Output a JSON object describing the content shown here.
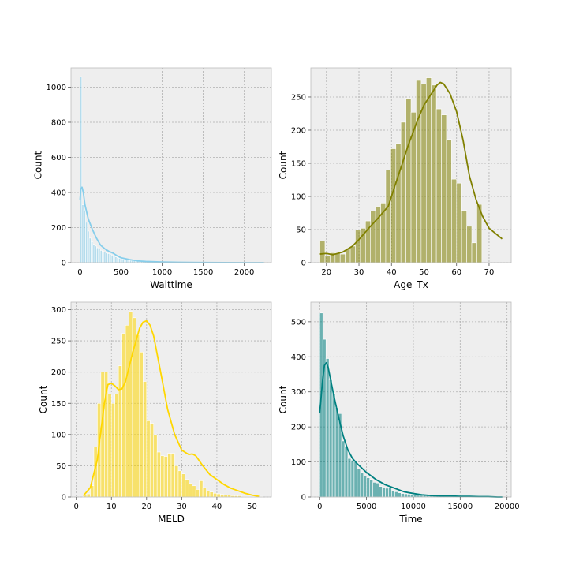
{
  "chart_data": [
    {
      "type": "histogram",
      "position": "top-left",
      "xlabel": "Waittime",
      "ylabel": "Count",
      "xlim": [
        -110,
        2330
      ],
      "ylim": [
        0,
        1110
      ],
      "xticks": [
        0,
        500,
        1000,
        1500,
        2000
      ],
      "yticks": [
        0,
        200,
        400,
        600,
        800,
        1000
      ],
      "grid": true,
      "color": "#87ceeb",
      "bin_start": 0,
      "bin_width": 22.4,
      "counts": [
        1060,
        330,
        300,
        230,
        180,
        140,
        120,
        105,
        95,
        85,
        78,
        70,
        64,
        60,
        55,
        52,
        48,
        43,
        38,
        33,
        28,
        25,
        22,
        20,
        18,
        16,
        14,
        13,
        12,
        11,
        10,
        9,
        8,
        7,
        7,
        6,
        6,
        5,
        5,
        4,
        4,
        4,
        3,
        3,
        3,
        3,
        2,
        2,
        2,
        2,
        2,
        2,
        1,
        1,
        1,
        1,
        1,
        1,
        1,
        1,
        1,
        1,
        1,
        1,
        1,
        1,
        1,
        1,
        1,
        1,
        1,
        1,
        1,
        1,
        1,
        1,
        1,
        1,
        1,
        1,
        0,
        0,
        0,
        0,
        0,
        0,
        0,
        0,
        0,
        0,
        0,
        0,
        0,
        0,
        0,
        0,
        0,
        0,
        0,
        1
      ],
      "kde": {
        "x": [
          0,
          10,
          25,
          40,
          60,
          100,
          150,
          200,
          250,
          300,
          350,
          400,
          450,
          500,
          600,
          700,
          800,
          1000,
          1200,
          1500,
          2000,
          2240
        ],
        "y": [
          360,
          420,
          430,
          400,
          330,
          250,
          190,
          140,
          100,
          80,
          65,
          55,
          40,
          28,
          18,
          10,
          7,
          4,
          2,
          1,
          0,
          0
        ]
      }
    },
    {
      "type": "histogram",
      "position": "top-right",
      "xlabel": "Age_Tx",
      "ylabel": "Count",
      "xlim": [
        15.2,
        76.8
      ],
      "ylim": [
        0,
        294
      ],
      "xticks": [
        20,
        30,
        40,
        50,
        60,
        70
      ],
      "yticks": [
        0,
        50,
        100,
        150,
        200,
        250
      ],
      "grid": true,
      "color": "#808000",
      "bin_start": 18,
      "bin_width": 1.556,
      "counts": [
        33,
        10,
        15,
        14,
        13,
        22,
        25,
        50,
        52,
        63,
        78,
        85,
        90,
        140,
        172,
        180,
        212,
        248,
        227,
        275,
        270,
        279,
        268,
        232,
        223,
        186,
        126,
        120,
        79,
        55,
        30,
        88
      ],
      "kde": {
        "x": [
          18,
          20,
          22,
          25,
          28,
          30,
          33,
          36,
          39,
          42,
          45,
          48,
          50,
          52,
          54,
          55,
          56,
          58,
          60,
          62,
          64,
          66,
          68,
          70,
          72,
          74
        ],
        "y": [
          13,
          14,
          12,
          16,
          25,
          35,
          52,
          68,
          85,
          130,
          175,
          215,
          238,
          253,
          268,
          272,
          270,
          255,
          228,
          185,
          130,
          95,
          70,
          52,
          44,
          36
        ]
      }
    },
    {
      "type": "histogram",
      "position": "bottom-left",
      "xlabel": "MELD",
      "ylabel": "Count",
      "xlim": [
        -1.5,
        55.5
      ],
      "ylim": [
        0,
        312
      ],
      "xticks": [
        0,
        10,
        20,
        30,
        40,
        50
      ],
      "yticks": [
        0,
        50,
        100,
        150,
        200,
        250,
        300
      ],
      "grid": true,
      "color": "#ffd700",
      "bin_start": 2,
      "bin_width": 1.0,
      "counts": [
        3,
        5,
        18,
        80,
        150,
        200,
        200,
        165,
        150,
        165,
        210,
        262,
        275,
        297,
        287,
        260,
        232,
        185,
        122,
        118,
        100,
        72,
        66,
        65,
        70,
        70,
        50,
        42,
        37,
        28,
        22,
        18,
        12,
        26,
        15,
        10,
        8,
        6,
        5,
        4,
        3,
        3,
        2,
        2,
        2,
        1,
        1,
        1,
        1,
        1,
        1
      ],
      "kde": {
        "x": [
          2,
          4,
          6,
          8,
          9,
          10,
          11,
          12,
          13,
          14,
          16,
          18,
          19,
          20,
          21,
          22,
          24,
          26,
          28,
          30,
          32,
          33,
          34,
          36,
          38,
          40,
          42,
          44,
          46,
          48,
          50,
          52
        ],
        "y": [
          2,
          15,
          60,
          150,
          180,
          182,
          178,
          172,
          173,
          185,
          230,
          270,
          280,
          282,
          275,
          258,
          200,
          140,
          100,
          75,
          68,
          69,
          66,
          50,
          36,
          28,
          20,
          14,
          10,
          6,
          3,
          1
        ]
      }
    },
    {
      "type": "histogram",
      "position": "bottom-right",
      "xlabel": "Time",
      "ylabel": "Count",
      "xlim": [
        -950,
        20450
      ],
      "ylim": [
        0,
        556
      ],
      "xticks": [
        0,
        5000,
        10000,
        15000,
        20000
      ],
      "yticks": [
        0,
        100,
        200,
        300,
        400,
        500
      ],
      "grid": true,
      "color": "#008080",
      "bin_start": 0,
      "bin_width": 334,
      "counts": [
        525,
        450,
        395,
        335,
        295,
        255,
        238,
        160,
        143,
        110,
        105,
        100,
        80,
        70,
        60,
        55,
        50,
        42,
        40,
        30,
        28,
        25,
        28,
        18,
        15,
        12,
        10,
        9,
        8,
        7,
        6,
        5,
        5,
        4,
        4,
        3,
        3,
        3,
        2,
        2,
        2,
        2,
        2,
        2,
        2,
        1,
        1,
        1,
        1,
        1,
        1,
        1,
        1,
        1,
        1,
        1,
        1,
        1
      ],
      "kde": {
        "x": [
          0,
          300,
          500,
          700,
          900,
          1200,
          1500,
          2000,
          2500,
          3000,
          3500,
          4000,
          5000,
          6000,
          7000,
          8000,
          9000,
          10000,
          11000,
          12000,
          13000,
          14000,
          15000,
          16000,
          17000,
          18000,
          19000,
          19500
        ],
        "y": [
          240,
          330,
          375,
          383,
          370,
          330,
          290,
          230,
          175,
          135,
          110,
          95,
          70,
          50,
          35,
          25,
          15,
          10,
          6,
          4,
          3,
          3,
          2,
          2,
          1,
          1,
          0,
          0
        ]
      }
    }
  ]
}
